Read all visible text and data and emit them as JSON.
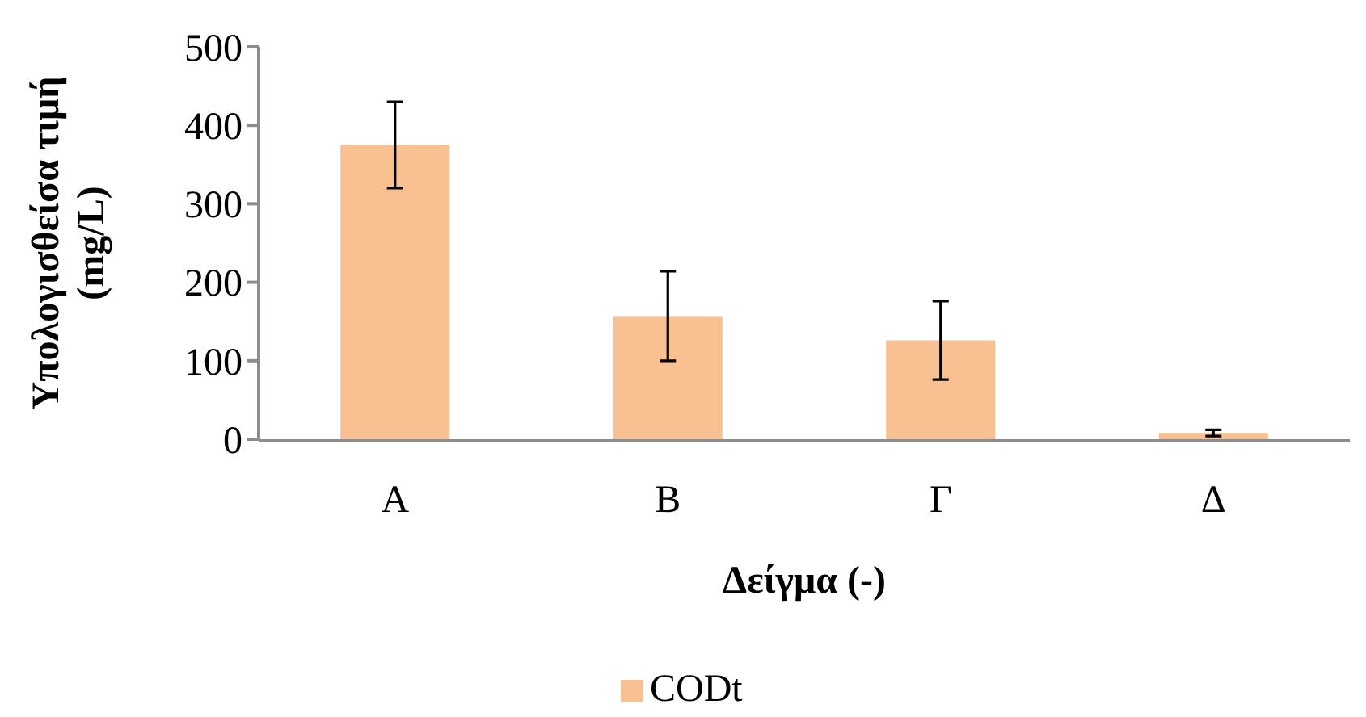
{
  "chart_data": {
    "type": "bar",
    "categories": [
      "Α",
      "Β",
      "Γ",
      "Δ"
    ],
    "series": [
      {
        "name": "CODt",
        "color": "#f9c191",
        "values": [
          375,
          157,
          126,
          8
        ],
        "errors": [
          55,
          57,
          50,
          4
        ]
      }
    ],
    "ylim": [
      0,
      500
    ],
    "yticks": [
      0,
      100,
      200,
      300,
      400,
      500
    ],
    "ylabel": "Υπολογισθείσα τιμή (mg/L)",
    "xlabel": "Δείγμα (-)",
    "legend": "bottom",
    "grid": false
  }
}
